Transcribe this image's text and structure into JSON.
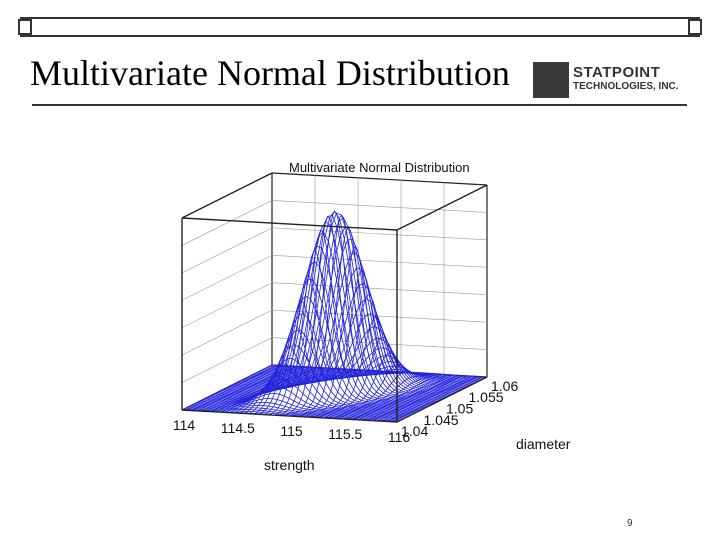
{
  "slide": {
    "title": "Multivariate Normal Distribution",
    "page_number": "9"
  },
  "logo": {
    "line1": "STATPOINT",
    "line2": "TECHNOLOGIES, INC."
  },
  "colors": {
    "surface": "#2222dd",
    "frame": "#222222"
  },
  "chart_data": {
    "type": "surface3d",
    "title": "Multivariate Normal Distribution",
    "x": {
      "label": "strength",
      "ticks": [
        "114",
        "114.5",
        "115",
        "115.5",
        "116"
      ],
      "range": [
        114,
        116
      ]
    },
    "y": {
      "label": "diameter",
      "ticks": [
        "1.04",
        "1.045",
        "1.05",
        "1.055",
        "1.06"
      ],
      "range": [
        1.04,
        1.06
      ]
    },
    "z": {
      "range": [
        0,
        1
      ]
    },
    "surface": {
      "function": "bivariate normal density",
      "peak_at": {
        "strength": 115,
        "diameter": 1.05
      },
      "sigma_strength": 0.2,
      "sigma_diameter": 0.003,
      "correlation": 0.6
    }
  }
}
